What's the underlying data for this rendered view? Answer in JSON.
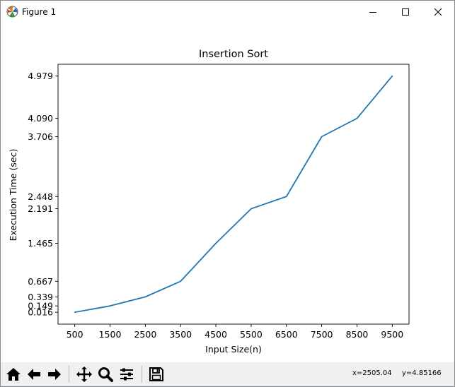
{
  "window": {
    "title": "Figure 1",
    "icon": "matplotlib-icon",
    "controls": [
      "minimize-icon",
      "maximize-icon",
      "close-icon"
    ]
  },
  "chart_data": {
    "type": "line",
    "title": "Insertion Sort",
    "xlabel": "Input Size(n)",
    "ylabel": "Execution Time (sec)",
    "x": [
      500,
      1500,
      2500,
      3500,
      4500,
      5500,
      6500,
      7500,
      8500,
      9500
    ],
    "series": [
      {
        "name": "Insertion Sort",
        "values": [
          0.016,
          0.149,
          0.339,
          0.667,
          1.465,
          2.191,
          2.448,
          3.706,
          4.09,
          4.979
        ]
      }
    ],
    "xticks": [
      500,
      1500,
      2500,
      3500,
      4500,
      5500,
      6500,
      7500,
      8500,
      9500
    ],
    "xtick_labels": [
      "500",
      "1500",
      "2500",
      "3500",
      "4500",
      "5500",
      "6500",
      "7500",
      "8500",
      "9500"
    ],
    "yticks": [
      0.016,
      0.149,
      0.339,
      0.667,
      1.465,
      2.191,
      2.448,
      3.706,
      4.09,
      4.979
    ],
    "ytick_labels": [
      "0.016",
      "0.149",
      "0.339",
      "0.667",
      "1.465",
      "2.191",
      "2.448",
      "3.706",
      "4.090",
      "4.979"
    ],
    "xlim": [
      25,
      9975
    ],
    "ylim": [
      -0.2342,
      5.2272
    ],
    "grid": false,
    "line_color": "#1f77b4"
  },
  "toolbar": {
    "buttons": [
      "home-icon",
      "back-icon",
      "forward-icon",
      "pan-icon",
      "zoom-icon",
      "configure-subplots-icon",
      "save-icon"
    ],
    "x_readout": "x=2505.04",
    "y_readout": "y=4.85166"
  }
}
